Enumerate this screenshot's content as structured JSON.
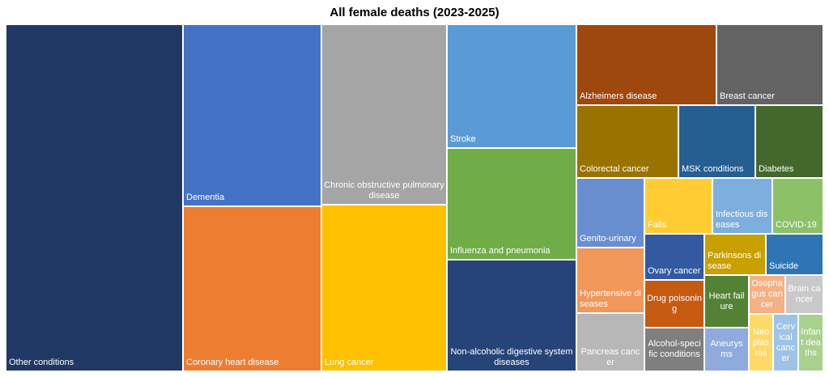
{
  "chart_data": {
    "type": "treemap",
    "title": "All female deaths (2023-2025)",
    "items": [
      {
        "label": "Other conditions",
        "color": "#1f3864"
      },
      {
        "label": "Dementia",
        "color": "#4472c4"
      },
      {
        "label": "Coronary heart disease",
        "color": "#ed7d31"
      },
      {
        "label": "Chronic obstructive pulmonary disease",
        "color": "#a5a5a5"
      },
      {
        "label": "Lung cancer",
        "color": "#ffc000"
      },
      {
        "label": "Stroke",
        "color": "#5b9bd5"
      },
      {
        "label": "Influenza and pneumonia",
        "color": "#70ad47"
      },
      {
        "label": "Non-alcoholic digestive system diseases",
        "color": "#264478"
      },
      {
        "label": "Alzheimers disease",
        "color": "#9e480e"
      },
      {
        "label": "Breast cancer",
        "color": "#636363"
      },
      {
        "label": "Colorectal cancer",
        "color": "#997300"
      },
      {
        "label": "MSK conditions",
        "color": "#255e91"
      },
      {
        "label": "Diabetes",
        "color": "#43682b"
      },
      {
        "label": "Genito-urinary",
        "color": "#698ed0"
      },
      {
        "label": "Falls",
        "color": "#ffcd33"
      },
      {
        "label": "Infectious diseases",
        "color": "#7cafdd"
      },
      {
        "label": "COVID-19",
        "color": "#8cc168"
      },
      {
        "label": "Hypertensive diseases",
        "color": "#f1975a"
      },
      {
        "label": "Ovary cancer",
        "color": "#335aa1"
      },
      {
        "label": "Parkinsons disease",
        "color": "#c8a000"
      },
      {
        "label": "Suicide",
        "color": "#2e75b6"
      },
      {
        "label": "Drug poisoning",
        "color": "#c55a11"
      },
      {
        "label": "Heart failure",
        "color": "#548235"
      },
      {
        "label": "Osophagus cancer",
        "color": "#f4b183"
      },
      {
        "label": "Brain cancer",
        "color": "#c9c9c9"
      },
      {
        "label": "Pancreas cancer",
        "color": "#b7b7b7"
      },
      {
        "label": "Alcohol-specific conditions",
        "color": "#7f7f7f"
      },
      {
        "label": "Aneurysms",
        "color": "#8faadc"
      },
      {
        "label": "Neoplasms",
        "color": "#ffd966"
      },
      {
        "label": "Cervical cancer",
        "color": "#9dc3e6"
      },
      {
        "label": "Infant deaths",
        "color": "#a9d18e"
      }
    ]
  }
}
